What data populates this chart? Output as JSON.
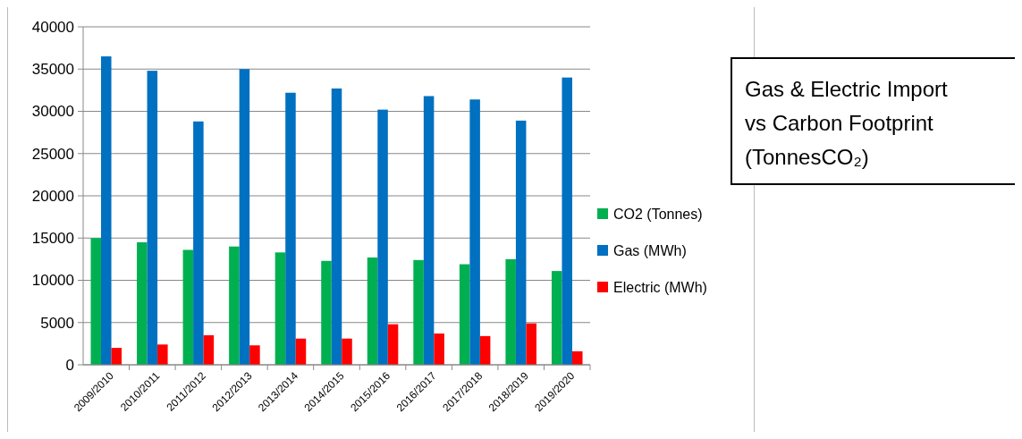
{
  "chart_data": {
    "type": "bar",
    "title": "Gas & Electric Import vs Carbon Footprint (TonnesCO₂)",
    "categories": [
      "2009/2010",
      "2010/2011",
      "2011/2012",
      "2012/2013",
      "2013/2014",
      "2014/2015",
      "2015/2016",
      "2016/2017",
      "2017/2018",
      "2018/2019",
      "2019/2020"
    ],
    "series": [
      {
        "name": "CO2 (Tonnes)",
        "color": "#00b050",
        "values": [
          15000,
          14500,
          13600,
          14000,
          13300,
          12300,
          12700,
          12400,
          11900,
          12500,
          11100
        ]
      },
      {
        "name": "Gas (MWh)",
        "color": "#0070c0",
        "values": [
          36500,
          34800,
          28800,
          35000,
          32200,
          32700,
          30200,
          31800,
          31400,
          28900,
          34000
        ]
      },
      {
        "name": "Electric (MWh)",
        "color": "#ff0000",
        "values": [
          2000,
          2400,
          3500,
          2300,
          3100,
          3100,
          4800,
          3700,
          3400,
          4900,
          1600
        ]
      }
    ],
    "ylim": [
      0,
      40000
    ],
    "yticks": [
      0,
      5000,
      10000,
      15000,
      20000,
      25000,
      30000,
      35000,
      40000
    ],
    "grid": "y",
    "legend": "right"
  }
}
